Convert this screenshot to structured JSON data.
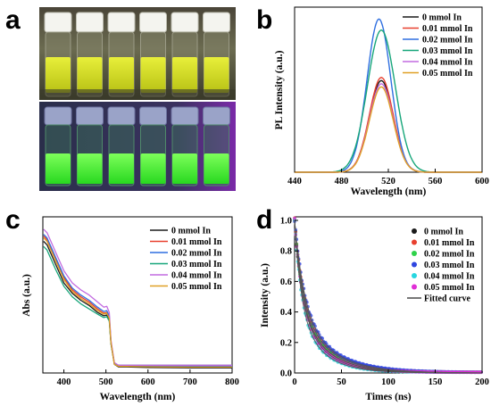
{
  "panels": {
    "a": {
      "letter": "a"
    },
    "b": {
      "letter": "b"
    },
    "c": {
      "letter": "c"
    },
    "d": {
      "letter": "d"
    }
  },
  "chart_data": [
    {
      "panel": "a",
      "type": "photo",
      "description_colors": {
        "top_solution": "#d7e21b",
        "bottom_fluorescence": "#3cff2a",
        "uv_glow": "#9a4cff"
      },
      "vial_count": 6
    },
    {
      "panel": "b",
      "type": "line",
      "xlabel": "Wavelength (nm)",
      "ylabel": "PL Intensity (a.u.)",
      "xlim": [
        440,
        600
      ],
      "xticks": [
        440,
        480,
        520,
        560,
        600
      ],
      "legend_placement": "top-right",
      "series": [
        {
          "name": "0 mmol In",
          "color": "#1a1a1a",
          "peak_x": 514,
          "peak_y": 0.58,
          "fwhm": 24
        },
        {
          "name": "0.01 mmol In",
          "color": "#e8402f",
          "peak_x": 514,
          "peak_y": 0.6,
          "fwhm": 24
        },
        {
          "name": "0.02 mmol In",
          "color": "#2f6fe0",
          "peak_x": 512,
          "peak_y": 0.97,
          "fwhm": 24
        },
        {
          "name": "0.03 mmol In",
          "color": "#17a67a",
          "peak_x": 514,
          "peak_y": 0.9,
          "fwhm": 28
        },
        {
          "name": "0.04 mmol In",
          "color": "#c26be0",
          "peak_x": 514,
          "peak_y": 0.56,
          "fwhm": 24
        },
        {
          "name": "0.05 mmol In",
          "color": "#e0a025",
          "peak_x": 514,
          "peak_y": 0.54,
          "fwhm": 24
        }
      ]
    },
    {
      "panel": "c",
      "type": "line",
      "xlabel": "Wavelength (nm)",
      "ylabel": "Abs (a.u.)",
      "xlim": [
        350,
        800
      ],
      "xticks": [
        400,
        500,
        600,
        700,
        800
      ],
      "legend_placement": "top-right",
      "x": [
        352,
        360,
        380,
        400,
        420,
        440,
        460,
        480,
        495,
        502,
        508,
        512,
        520,
        530,
        550,
        600,
        700,
        800
      ],
      "series": [
        {
          "name": "0 mmol In",
          "color": "#1a1a1a",
          "values": [
            0.76,
            0.74,
            0.63,
            0.52,
            0.46,
            0.42,
            0.39,
            0.35,
            0.33,
            0.335,
            0.31,
            0.17,
            0.05,
            0.035,
            0.035,
            0.032,
            0.03,
            0.03
          ]
        },
        {
          "name": "0.01 mmol In",
          "color": "#e8402f",
          "values": [
            0.79,
            0.77,
            0.66,
            0.55,
            0.48,
            0.44,
            0.41,
            0.37,
            0.345,
            0.35,
            0.32,
            0.18,
            0.055,
            0.04,
            0.04,
            0.037,
            0.035,
            0.035
          ]
        },
        {
          "name": "0.02 mmol In",
          "color": "#2f6fe0",
          "values": [
            0.8,
            0.78,
            0.67,
            0.56,
            0.49,
            0.45,
            0.42,
            0.38,
            0.355,
            0.36,
            0.33,
            0.18,
            0.055,
            0.04,
            0.04,
            0.04,
            0.04,
            0.04
          ]
        },
        {
          "name": "0.03 mmol In",
          "color": "#17a67a",
          "values": [
            0.73,
            0.71,
            0.6,
            0.5,
            0.44,
            0.4,
            0.37,
            0.34,
            0.32,
            0.325,
            0.3,
            0.17,
            0.055,
            0.045,
            0.045,
            0.045,
            0.045,
            0.045
          ]
        },
        {
          "name": "0.04 mmol In",
          "color": "#c26be0",
          "values": [
            0.83,
            0.81,
            0.7,
            0.59,
            0.52,
            0.48,
            0.45,
            0.41,
            0.38,
            0.385,
            0.35,
            0.19,
            0.06,
            0.045,
            0.045,
            0.045,
            0.045,
            0.045
          ]
        },
        {
          "name": "0.05 mmol In",
          "color": "#e0a025",
          "values": [
            0.78,
            0.76,
            0.65,
            0.54,
            0.47,
            0.43,
            0.4,
            0.36,
            0.34,
            0.345,
            0.315,
            0.175,
            0.05,
            0.038,
            0.038,
            0.036,
            0.034,
            0.034
          ]
        }
      ]
    },
    {
      "panel": "d",
      "type": "scatter",
      "xlabel": "Times (ns)",
      "ylabel": "Intensity (a.u.)",
      "xlim": [
        0,
        200
      ],
      "ylim": [
        0.0,
        1.0
      ],
      "xticks": [
        0,
        50,
        100,
        150,
        200
      ],
      "yticks": [
        0.0,
        0.2,
        0.4,
        0.6,
        0.8,
        1.0
      ],
      "legend_placement": "top-right",
      "fit_label": "Fitted curve",
      "fit_color": "#555555",
      "series": [
        {
          "name": "0 mmol In",
          "color": "#1a1a1a",
          "tau1": 8,
          "tau2": 30,
          "a1": 0.55,
          "a2": 0.45
        },
        {
          "name": "0.01 mmol In",
          "color": "#e8402f",
          "tau1": 9,
          "tau2": 32,
          "a1": 0.55,
          "a2": 0.45
        },
        {
          "name": "0.02 mmol In",
          "color": "#2fd24a",
          "tau1": 8,
          "tau2": 30,
          "a1": 0.56,
          "a2": 0.44
        },
        {
          "name": "0.03 mmol In",
          "color": "#2f46e0",
          "tau1": 10,
          "tau2": 34,
          "a1": 0.55,
          "a2": 0.45
        },
        {
          "name": "0.04 mmol In",
          "color": "#27d6e0",
          "tau1": 7,
          "tau2": 26,
          "a1": 0.58,
          "a2": 0.42
        },
        {
          "name": "0.05 mmol In",
          "color": "#e02fd6",
          "tau1": 8,
          "tau2": 28,
          "a1": 0.57,
          "a2": 0.43
        }
      ]
    }
  ]
}
